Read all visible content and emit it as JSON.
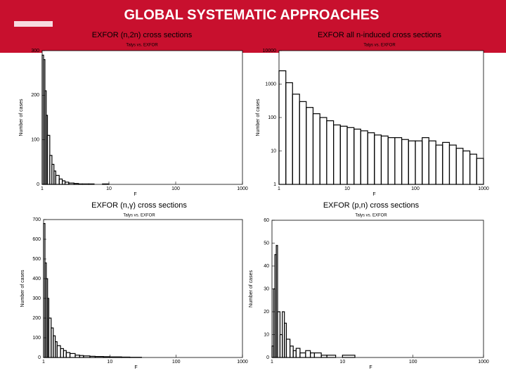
{
  "slide_title": "GLOBAL SYSTEMATIC APPROACHES",
  "chart_data": [
    {
      "type": "histogram",
      "title": "EXFOR (n,2n) cross sections",
      "subtitle": "Talys vs. EXFOR",
      "xlabel": "F",
      "ylabel": "Number of cases",
      "color": "#000000",
      "xscale": "log",
      "bins": [
        1,
        1.05,
        1.1,
        1.15,
        1.2,
        1.3,
        1.4,
        1.5,
        1.6,
        1.8,
        2,
        2.2,
        2.5,
        3,
        3.5,
        4,
        5,
        6,
        8,
        10,
        15,
        20,
        30
      ],
      "values": [
        290,
        280,
        210,
        155,
        110,
        65,
        45,
        30,
        20,
        12,
        8,
        5,
        3,
        2,
        1,
        1,
        1,
        0,
        1,
        0,
        0,
        0
      ],
      "xlim": [
        1,
        1000
      ],
      "xticks": [
        1,
        10,
        100,
        1000
      ],
      "ylim": [
        0,
        300
      ],
      "yticks": [
        0,
        100,
        200,
        300
      ]
    },
    {
      "type": "histogram",
      "title": "EXFOR all n-induced cross sections",
      "subtitle": "Talys vs. EXFOR",
      "xlabel": "F",
      "ylabel": "Number of cases",
      "color": "#000000",
      "xscale": "log",
      "yscale": "log",
      "bins": [
        1,
        1.26,
        1.58,
        2,
        2.51,
        3.16,
        3.98,
        5.01,
        6.31,
        7.94,
        10,
        12.6,
        15.8,
        20,
        25.1,
        31.6,
        39.8,
        50.1,
        63.1,
        79.4,
        100,
        126,
        158,
        200,
        251,
        316,
        398,
        501,
        631,
        794,
        1000
      ],
      "values": [
        2500,
        1100,
        500,
        300,
        200,
        130,
        100,
        80,
        60,
        55,
        50,
        45,
        40,
        35,
        30,
        28,
        25,
        25,
        22,
        20,
        20,
        25,
        20,
        15,
        18,
        15,
        12,
        10,
        8,
        6
      ],
      "xlim": [
        1,
        1000
      ],
      "xticks": [
        1,
        10,
        100,
        1000
      ],
      "ylim": [
        1,
        10000
      ],
      "yticks": [
        1,
        10,
        100,
        1000,
        10000
      ]
    },
    {
      "type": "histogram",
      "title": "EXFOR (n,γ) cross sections",
      "subtitle": "Talys vs. EXFOR",
      "xlabel": "F",
      "ylabel": "Number of cases",
      "color": "#000000",
      "xscale": "log",
      "bins": [
        1,
        1.05,
        1.1,
        1.15,
        1.2,
        1.3,
        1.4,
        1.5,
        1.6,
        1.8,
        2,
        2.2,
        2.5,
        3,
        3.5,
        4,
        5,
        6,
        8,
        10,
        15,
        20,
        30
      ],
      "values": [
        680,
        480,
        400,
        300,
        200,
        150,
        110,
        80,
        60,
        45,
        35,
        25,
        20,
        12,
        10,
        8,
        6,
        5,
        4,
        3,
        2,
        1
      ],
      "xlim": [
        1,
        1000
      ],
      "xticks": [
        1,
        10,
        100,
        1000
      ],
      "ylim": [
        0,
        700
      ],
      "yticks": [
        0,
        100,
        200,
        300,
        400,
        500,
        600,
        700
      ]
    },
    {
      "type": "histogram",
      "title": "EXFOR (p,n) cross sections",
      "subtitle": "Talys vs. EXFOR",
      "xlabel": "F",
      "ylabel": "Number of cases",
      "color": "#000000",
      "xscale": "log",
      "bins": [
        1,
        1.05,
        1.1,
        1.15,
        1.2,
        1.3,
        1.4,
        1.5,
        1.6,
        1.8,
        2,
        2.2,
        2.5,
        3,
        3.5,
        4,
        5,
        6,
        8,
        10,
        15,
        20,
        30
      ],
      "values": [
        5,
        30,
        45,
        49,
        20,
        10,
        20,
        15,
        8,
        5,
        3,
        4,
        2,
        3,
        2,
        2,
        1,
        1,
        0,
        1,
        0,
        0
      ],
      "xlim": [
        1,
        1000
      ],
      "xticks": [
        1,
        10,
        100,
        1000
      ],
      "ylim": [
        0,
        60
      ],
      "yticks": [
        0,
        10,
        20,
        30,
        40,
        50,
        60
      ]
    }
  ]
}
